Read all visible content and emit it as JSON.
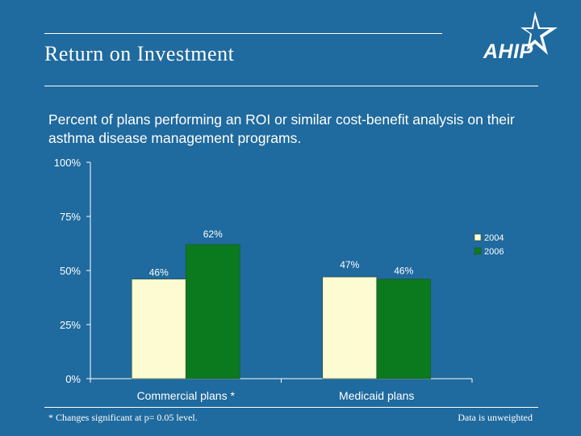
{
  "slide": {
    "title": "Return on Investment",
    "logo_text": "AHIP",
    "subtitle": "Percent of plans performing an ROI or similar cost-benefit analysis on their asthma disease management programs.",
    "footnote": "* Changes significant at p= 0.05 level.",
    "data_note": "Data is unweighted"
  },
  "colors": {
    "background": "#1f6a9e",
    "series_2004": "#fdfbd2",
    "series_2006": "#0b7a1e"
  },
  "chart_data": {
    "type": "bar",
    "title": "",
    "xlabel": "",
    "ylabel": "",
    "categories": [
      "Commercial plans *",
      "Medicaid plans"
    ],
    "series": [
      {
        "name": "2004",
        "values": [
          46,
          47
        ],
        "labels": [
          "46%",
          "47%"
        ]
      },
      {
        "name": "2006",
        "values": [
          62,
          46
        ],
        "labels": [
          "62%",
          "46%"
        ]
      }
    ],
    "ylim": [
      0,
      100
    ],
    "yticks": [
      0,
      25,
      50,
      75,
      100
    ],
    "ytick_labels": [
      "0%",
      "25%",
      "50%",
      "75%",
      "100%"
    ],
    "grid": false,
    "legend": "right"
  }
}
